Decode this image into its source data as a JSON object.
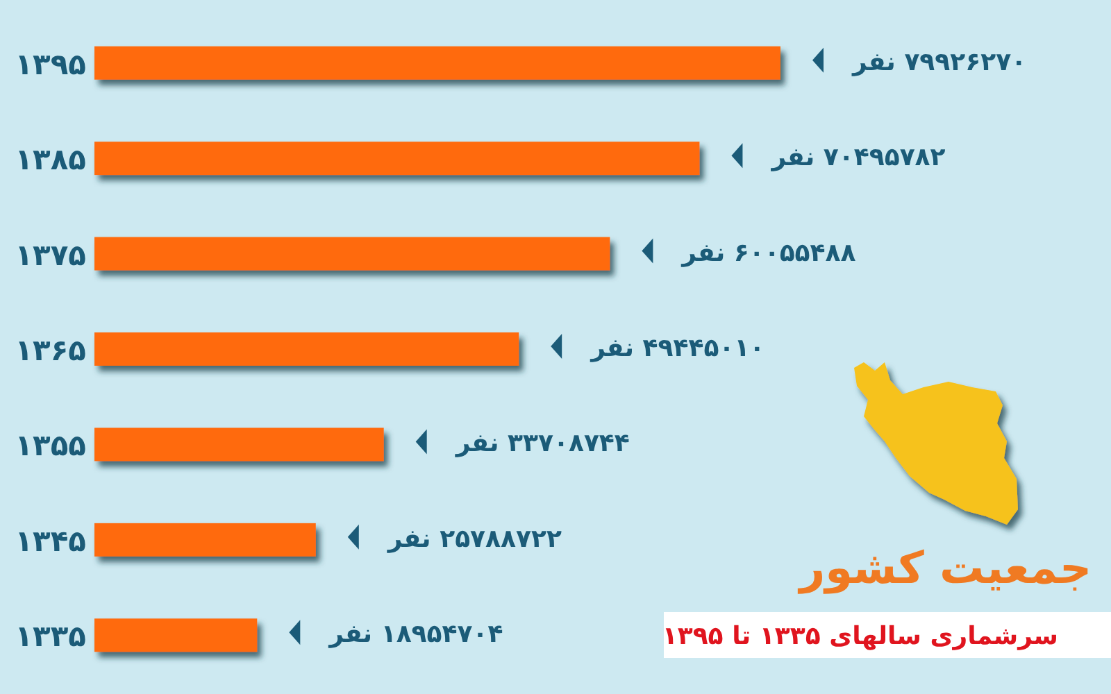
{
  "chart_data": {
    "type": "bar",
    "orientation": "horizontal",
    "title": "جمعیت کشور",
    "subtitle": "سرشماری سالهای ۱۳۳۵ تا ۱۳۹۵",
    "categories": [
      "۱۳۹۵",
      "۱۳۸۵",
      "۱۳۷۵",
      "۱۳۶۵",
      "۱۳۵۵",
      "۱۳۴۵",
      "۱۳۳۵"
    ],
    "values": [
      79926270,
      70495782,
      60055488,
      49445010,
      33708744,
      25788722,
      18954704
    ],
    "color": "#ff6a0d",
    "value_labels": [
      "۷۹۹۲۶۲۷۰ نفر",
      "۷۰۴۹۵۷۸۲ نفر",
      "۶۰۰۵۵۴۸۸ نفر",
      "۴۹۴۴۵۰۱۰ نفر",
      "۳۳۷۰۸۷۴۴ نفر",
      "۲۵۷۸۸۷۲۲ نفر",
      "۱۸۹۵۴۷۰۴ نفر"
    ]
  }
}
